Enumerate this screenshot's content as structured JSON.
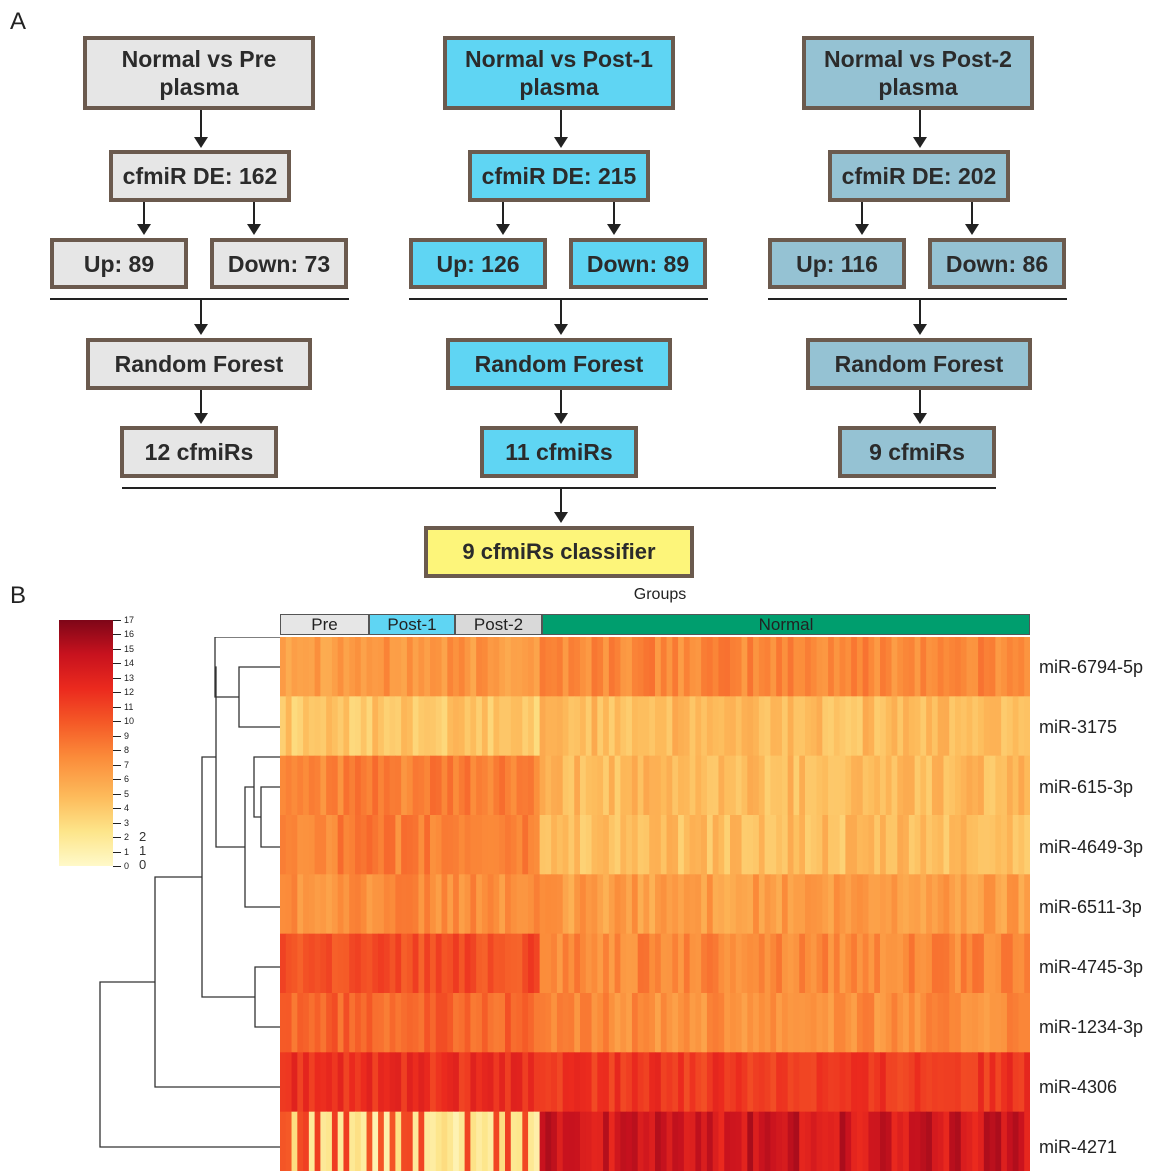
{
  "panels": {
    "a": "A",
    "b": "B"
  },
  "flowchart": {
    "columns": [
      {
        "title": "Normal vs Pre plasma",
        "de": "cfmiR DE: 162",
        "up": "Up: 89",
        "down": "Down: 73",
        "method": "Random Forest",
        "result": "12 cfmiRs",
        "color": "#e6e6e6"
      },
      {
        "title": "Normal vs Post-1 plasma",
        "de": "cfmiR DE: 215",
        "up": "Up: 126",
        "down": "Down: 89",
        "method": "Random Forest",
        "result": "11 cfmiRs",
        "color": "#5fd5f3"
      },
      {
        "title": "Normal vs Post-2 plasma",
        "de": "cfmiR DE: 202",
        "up": "Up: 116",
        "down": "Down: 86",
        "method": "Random Forest",
        "result": "9 cfmiRs",
        "color": "#95c2d3"
      }
    ],
    "final": "9 cfmiRs classifier"
  },
  "heatmap": {
    "groups_title": "Groups",
    "groups": [
      {
        "label": "Pre",
        "color": "#e6e6e6"
      },
      {
        "label": "Post-1",
        "color": "#5fd5f3"
      },
      {
        "label": "Post-2",
        "color": "#d9d9d9"
      },
      {
        "label": "Normal",
        "color": "#009e6e"
      }
    ],
    "rows": [
      "miR-6794-5p",
      "miR-3175",
      "miR-615-3p",
      "miR-4649-3p",
      "miR-6511-3p",
      "miR-4745-3p",
      "miR-1234-3p",
      "miR-4306",
      "miR-4271"
    ],
    "legend_ticks": [
      "17",
      "16",
      "15",
      "14",
      "13",
      "12",
      "11",
      "10",
      "9",
      "8",
      "7",
      "6",
      "5",
      "4",
      "3",
      "2",
      "1",
      "0"
    ],
    "legend_extra": [
      "2",
      "1",
      "0"
    ]
  }
}
